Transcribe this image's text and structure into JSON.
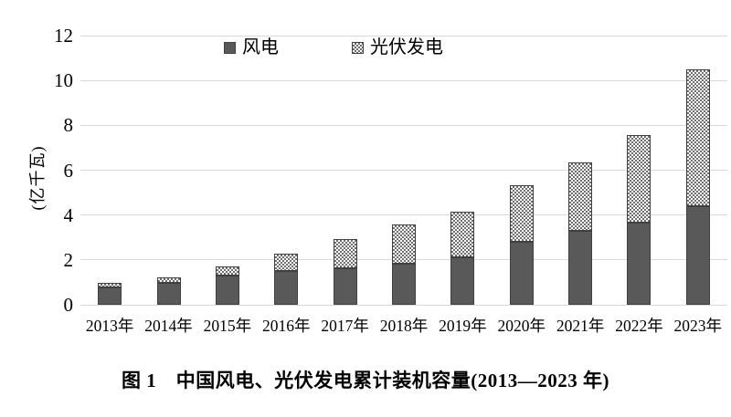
{
  "figure": {
    "caption": "图 1　中国风电、光伏发电累计装机容量(2013—2023 年)"
  },
  "chart_data": {
    "type": "bar",
    "stacked": true,
    "title": "",
    "xlabel": "",
    "ylabel": "(亿千瓦)",
    "categories": [
      "2013年",
      "2014年",
      "2015年",
      "2016年",
      "2017年",
      "2018年",
      "2019年",
      "2020年",
      "2021年",
      "2022年",
      "2023年"
    ],
    "series": [
      {
        "name": "风电",
        "values": [
          0.77,
          0.96,
          1.29,
          1.49,
          1.64,
          1.84,
          2.1,
          2.81,
          3.28,
          3.65,
          4.41
        ],
        "color": "#595959",
        "pattern": "solid"
      },
      {
        "name": "光伏发电",
        "values": [
          0.19,
          0.28,
          0.43,
          0.77,
          1.3,
          1.74,
          2.04,
          2.53,
          3.06,
          3.93,
          6.09
        ],
        "color": "#ffffff",
        "pattern": "checker",
        "pattern_color": "#6e6e6e"
      }
    ],
    "ylim": [
      0,
      12
    ],
    "yticks": [
      0,
      2,
      4,
      6,
      8,
      10,
      12
    ],
    "grid": true,
    "legend_position": "top-inside"
  },
  "colors": {
    "grid": "#d9d9d9",
    "text": "#000000",
    "bar_border": "#3f3f3f",
    "wind_fill": "#595959",
    "pv_dot": "#6e6e6e"
  }
}
